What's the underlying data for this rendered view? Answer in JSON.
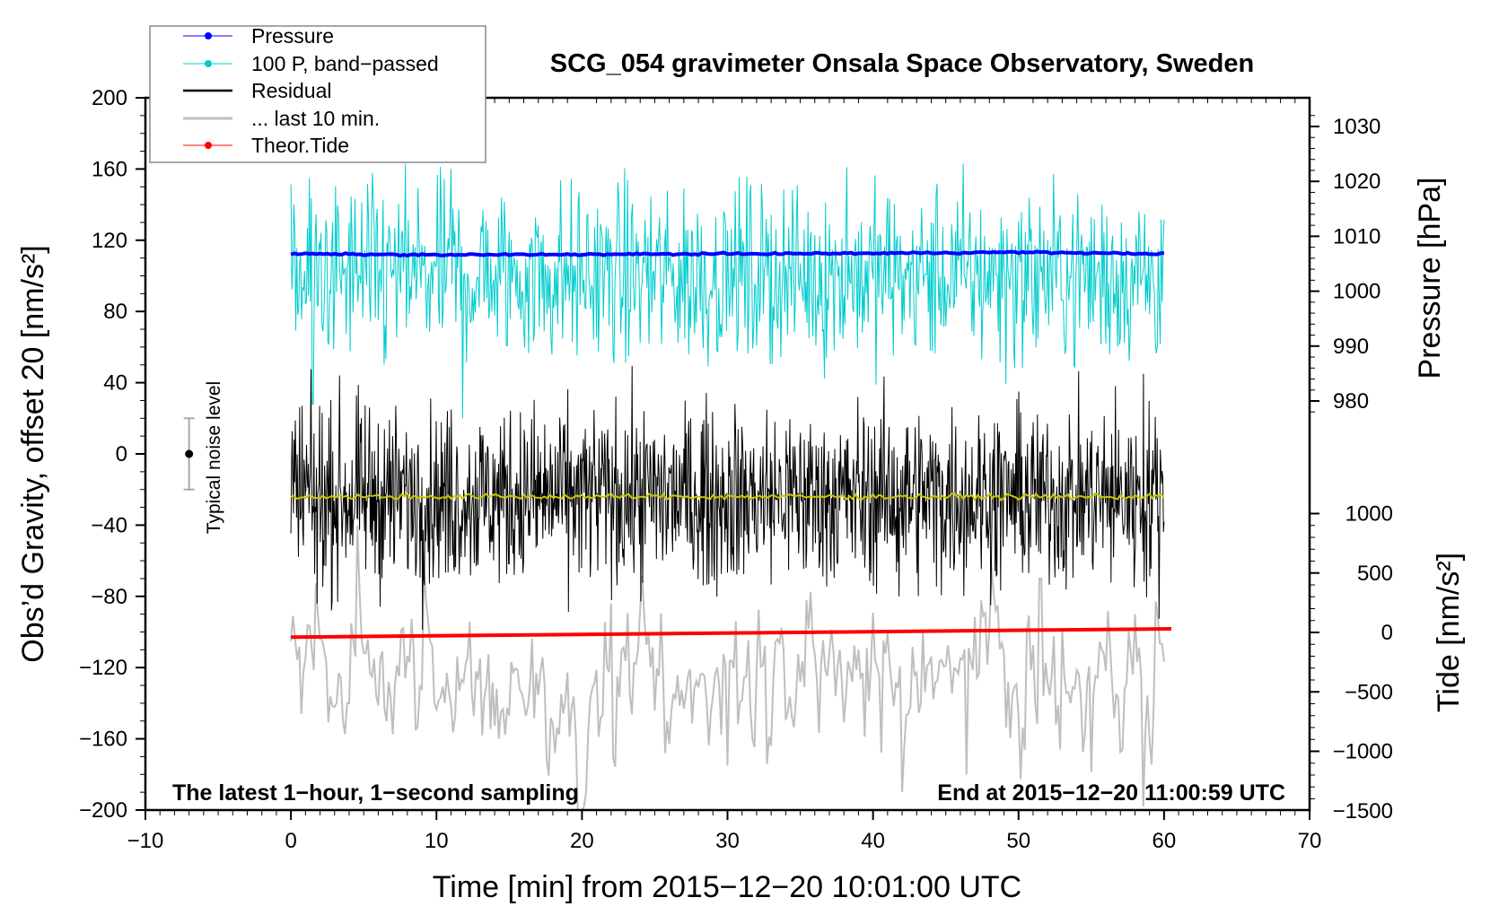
{
  "chart_data": {
    "type": "line",
    "title": "SCG_054 gravimeter Onsala Space Observatory, Sweden",
    "xlabel": "Time [min] from 2015−12−20 10:01:00 UTC",
    "ylabel_left": "Obs’d Gravity, offset 20 [nm/s²]",
    "ylabel_right_pressure": "Pressure [hPa]",
    "ylabel_right_tide": "Tide [nm/s²]",
    "xlim": [
      -10,
      70
    ],
    "ylim_left": [
      -200,
      200
    ],
    "x_ticks": [
      "−10",
      "0",
      "10",
      "20",
      "30",
      "40",
      "50",
      "60",
      "70"
    ],
    "y_ticks_left": [
      "200",
      "160",
      "120",
      "80",
      "40",
      "0",
      "−40",
      "−80",
      "−120",
      "−160",
      "−200"
    ],
    "pressure_ticks": [
      "1030",
      "1020",
      "1010",
      "1000",
      "990",
      "980"
    ],
    "tide_ticks": [
      "1000",
      "500",
      "0",
      "−500",
      "−1000",
      "−1500"
    ],
    "annotations": {
      "bottom_left": "The latest 1−hour, 1−second sampling",
      "bottom_right": "End at 2015−12−20 11:00:59 UTC",
      "noise_label": "Typical noise level"
    },
    "noise_bar": {
      "x": -7,
      "center": 0,
      "half_range": 20
    },
    "legend": {
      "position": "top-left",
      "entries": [
        {
          "label": "Pressure",
          "color": "#0000ff"
        },
        {
          "label": "100 P, band−passed",
          "color": "#00cccc"
        },
        {
          "label": "Residual",
          "color": "#000000"
        },
        {
          "label": "... last 10 min.",
          "color": "#bfbfbf"
        },
        {
          "label": "Theor.Tide",
          "color": "#ff0000"
        }
      ]
    },
    "series": [
      {
        "name": "Pressure",
        "axis": "pressure_hPa",
        "x": [
          0,
          10,
          20,
          30,
          40,
          50,
          60
        ],
        "values": [
          1006.8,
          1006.6,
          1006.7,
          1006.8,
          1006.9,
          1007.1,
          1006.8
        ],
        "color": "#0000ff"
      },
      {
        "name": "100 P, band-passed",
        "axis": "left",
        "center": 100,
        "amplitude": 25,
        "peaks": [
          [
            11.0,
            160
          ],
          [
            38.2,
            161
          ],
          [
            11.8,
            20
          ],
          [
            1.5,
            28
          ]
        ],
        "color": "#00cccc"
      },
      {
        "name": "Residual",
        "axis": "left",
        "center": -24,
        "amplitude": 25,
        "peaks": [
          [
            58.6,
            45
          ],
          [
            1.8,
            -84
          ],
          [
            41.8,
            -80
          ]
        ],
        "color": "#000000"
      },
      {
        "name": "Residual smoothed",
        "axis": "left",
        "center": -24,
        "color": "#c8c800"
      },
      {
        "name": "... last 10 min.",
        "axis": "left",
        "center": -125,
        "amplitude": 35,
        "peaks": [
          [
            51.5,
            -70
          ],
          [
            46.4,
            -180
          ],
          [
            30.0,
            -70
          ],
          [
            30.0,
            -175
          ]
        ],
        "color": "#bfbfbf"
      },
      {
        "name": "Theor.Tide",
        "axis": "tide_nm_s2",
        "x": [
          0,
          60.5
        ],
        "values": [
          -40,
          30
        ],
        "color": "#ff0000"
      }
    ]
  }
}
